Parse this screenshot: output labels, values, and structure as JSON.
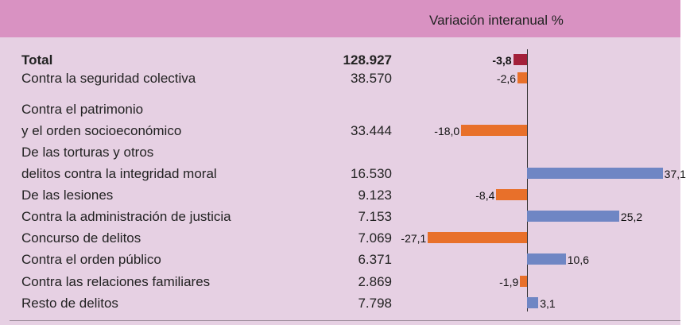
{
  "chart_data": {
    "type": "bar",
    "header": "Variación interanual %",
    "categories": [
      "Total",
      "Contra la seguridad colectiva",
      "Contra el patrimonio\ny el orden socioeconómico",
      "De las torturas y otros\ndelitos contra la integridad moral",
      "De las lesiones",
      "Contra la administración de justicia",
      "Concurso de delitos",
      "Contra el orden público",
      "Contra las relaciones familiares",
      "Resto de delitos"
    ],
    "counts": [
      "128.927",
      "38.570",
      "33.444",
      "16.530",
      "9.123",
      "7.153",
      "7.069",
      "6.371",
      "2.869",
      "7.798"
    ],
    "values": [
      -3.8,
      -2.6,
      -18.0,
      37.1,
      -8.4,
      25.2,
      -27.1,
      10.6,
      -1.9,
      3.1
    ],
    "value_labels": [
      "-3,8",
      "-2,6",
      "-18,0",
      "37,1",
      "-8,4",
      "25,2",
      "-27,1",
      "10,6",
      "-1,9",
      "3,1"
    ],
    "colors": [
      "#a3203a",
      "#e8702a",
      "#e8702a",
      "#6f86c4",
      "#e8702a",
      "#6f86c4",
      "#e8702a",
      "#6f86c4",
      "#e8702a",
      "#6f86c4"
    ]
  }
}
